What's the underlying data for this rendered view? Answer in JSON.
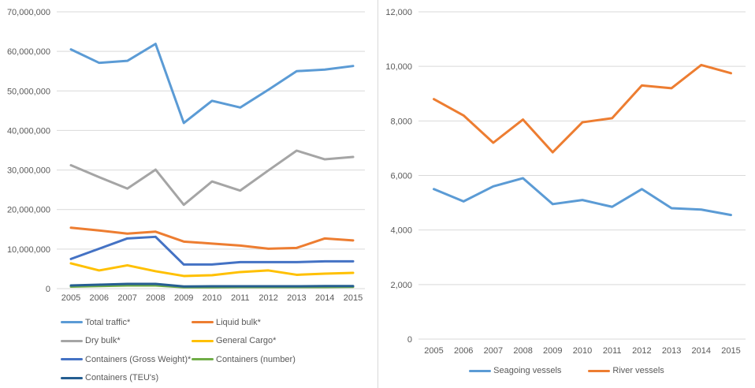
{
  "styles": {
    "grid_color": "#D9D9D9",
    "axis_text_color": "#595959",
    "divider_color": "#D9D9D9"
  },
  "chart_data": [
    {
      "type": "line",
      "title": "",
      "xlabel": "",
      "ylabel": "",
      "x": [
        2005,
        2006,
        2007,
        2008,
        2009,
        2010,
        2011,
        2012,
        2013,
        2014,
        2015
      ],
      "ylim": [
        0,
        70000000
      ],
      "ytick_step": 10000000,
      "grid": true,
      "legend_position": "bottom-left-two-columns",
      "series": [
        {
          "name": "Total traffic*",
          "color": "#5B9BD5",
          "values": [
            60500000,
            57100000,
            57600000,
            61900000,
            41900000,
            47500000,
            45800000,
            50300000,
            55000000,
            55400000,
            56300000
          ]
        },
        {
          "name": "Liquid bulk*",
          "color": "#ED7D31",
          "values": [
            15400000,
            14700000,
            13900000,
            14400000,
            11900000,
            11400000,
            10900000,
            10100000,
            10300000,
            12700000,
            12200000
          ]
        },
        {
          "name": "Dry bulk*",
          "color": "#A5A5A5",
          "values": [
            31200000,
            28200000,
            25300000,
            30100000,
            21200000,
            27100000,
            24800000,
            29900000,
            34900000,
            32700000,
            33300000
          ]
        },
        {
          "name": "General Cargo*",
          "color": "#FFC000",
          "values": [
            6400000,
            4600000,
            5900000,
            4400000,
            3200000,
            3400000,
            4200000,
            4600000,
            3500000,
            3800000,
            4000000
          ]
        },
        {
          "name": "Containers (Gross Weight)*",
          "color": "#4472C4",
          "values": [
            7500000,
            10100000,
            12700000,
            13100000,
            6100000,
            6100000,
            6700000,
            6700000,
            6700000,
            6900000,
            6900000
          ]
        },
        {
          "name": "Containers (number)",
          "color": "#70AD47",
          "values": [
            500000,
            650000,
            800000,
            800000,
            350000,
            350000,
            400000,
            400000,
            400000,
            400000,
            450000
          ]
        },
        {
          "name": "Containers (TEU's)",
          "color": "#255E91",
          "values": [
            800000,
            1000000,
            1200000,
            1200000,
            550000,
            600000,
            600000,
            600000,
            600000,
            650000,
            650000
          ]
        }
      ]
    },
    {
      "type": "line",
      "title": "",
      "xlabel": "",
      "ylabel": "",
      "x": [
        2005,
        2006,
        2007,
        2008,
        2009,
        2010,
        2011,
        2012,
        2013,
        2014,
        2015
      ],
      "ylim": [
        0,
        12000
      ],
      "ytick_step": 2000,
      "grid": true,
      "legend_position": "bottom-center",
      "series": [
        {
          "name": "Seagoing vessels",
          "color": "#5B9BD5",
          "values": [
            5500,
            5050,
            5600,
            5900,
            4950,
            5100,
            4850,
            5500,
            4800,
            4750,
            4550
          ]
        },
        {
          "name": "River vessels",
          "color": "#ED7D31",
          "values": [
            8800,
            8200,
            7200,
            8050,
            6850,
            7950,
            8100,
            9300,
            9200,
            10050,
            9750
          ]
        }
      ]
    }
  ]
}
